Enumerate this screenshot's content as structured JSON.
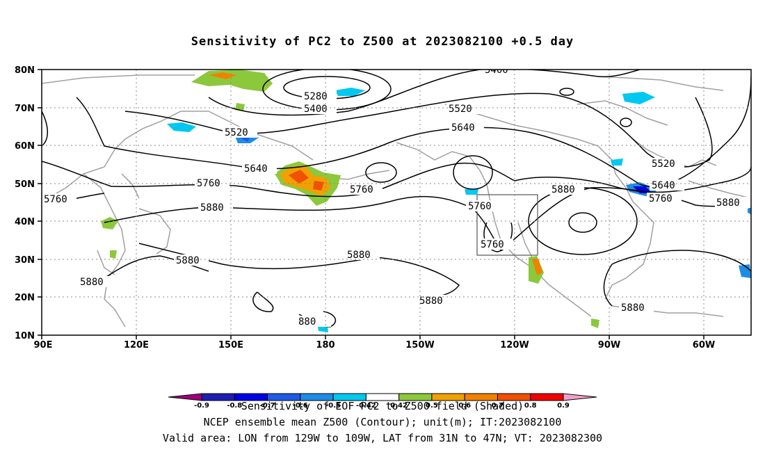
{
  "title": "Sensitivity of PC2 to Z500 at 2023082100 +0.5 day",
  "lat_labels": [
    "80N",
    "70N",
    "60N",
    "50N",
    "40N",
    "30N",
    "20N",
    "10N"
  ],
  "lon_labels": [
    "90E",
    "120E",
    "150E",
    "180",
    "150W",
    "120W",
    "90W",
    "60W"
  ],
  "contour_labels": [
    "5280",
    "5400",
    "5400",
    "5520",
    "5520",
    "5520",
    "5640",
    "5640",
    "5640",
    "5760",
    "5760",
    "5760",
    "5760",
    "5760",
    "5760",
    "5880",
    "5880",
    "5880",
    "5880",
    "5880",
    "5880",
    "5880",
    "5880",
    "880"
  ],
  "colorbar": {
    "tick_labels": [
      "-0.9",
      "-0.8",
      "-0.7",
      "-0.6",
      "-0.5",
      "-0.42",
      "0.42",
      "0.5",
      "0.6",
      "0.7",
      "0.8",
      "0.9"
    ],
    "colors": [
      "#a0007d",
      "#1e1eb4",
      "#0000e6",
      "#1e5ae6",
      "#1e8ce6",
      "#00c8f0",
      "#ffffff",
      "#8cc83c",
      "#f0a000",
      "#f08200",
      "#f05000",
      "#f00000",
      "#f0a0c8"
    ]
  },
  "captions": [
    "Sensitivity of EOF PC2 to Z500 field (Shaded)",
    "NCEP ensemble mean Z500 (Contour); unit(m); IT:2023082100",
    "Valid area: LON from 129W to 109W, LAT from 31N to 47N; VT: 2023082300"
  ],
  "valid_area": {
    "lon_min": -129,
    "lon_max": -109,
    "lat_min": 31,
    "lat_max": 47
  }
}
